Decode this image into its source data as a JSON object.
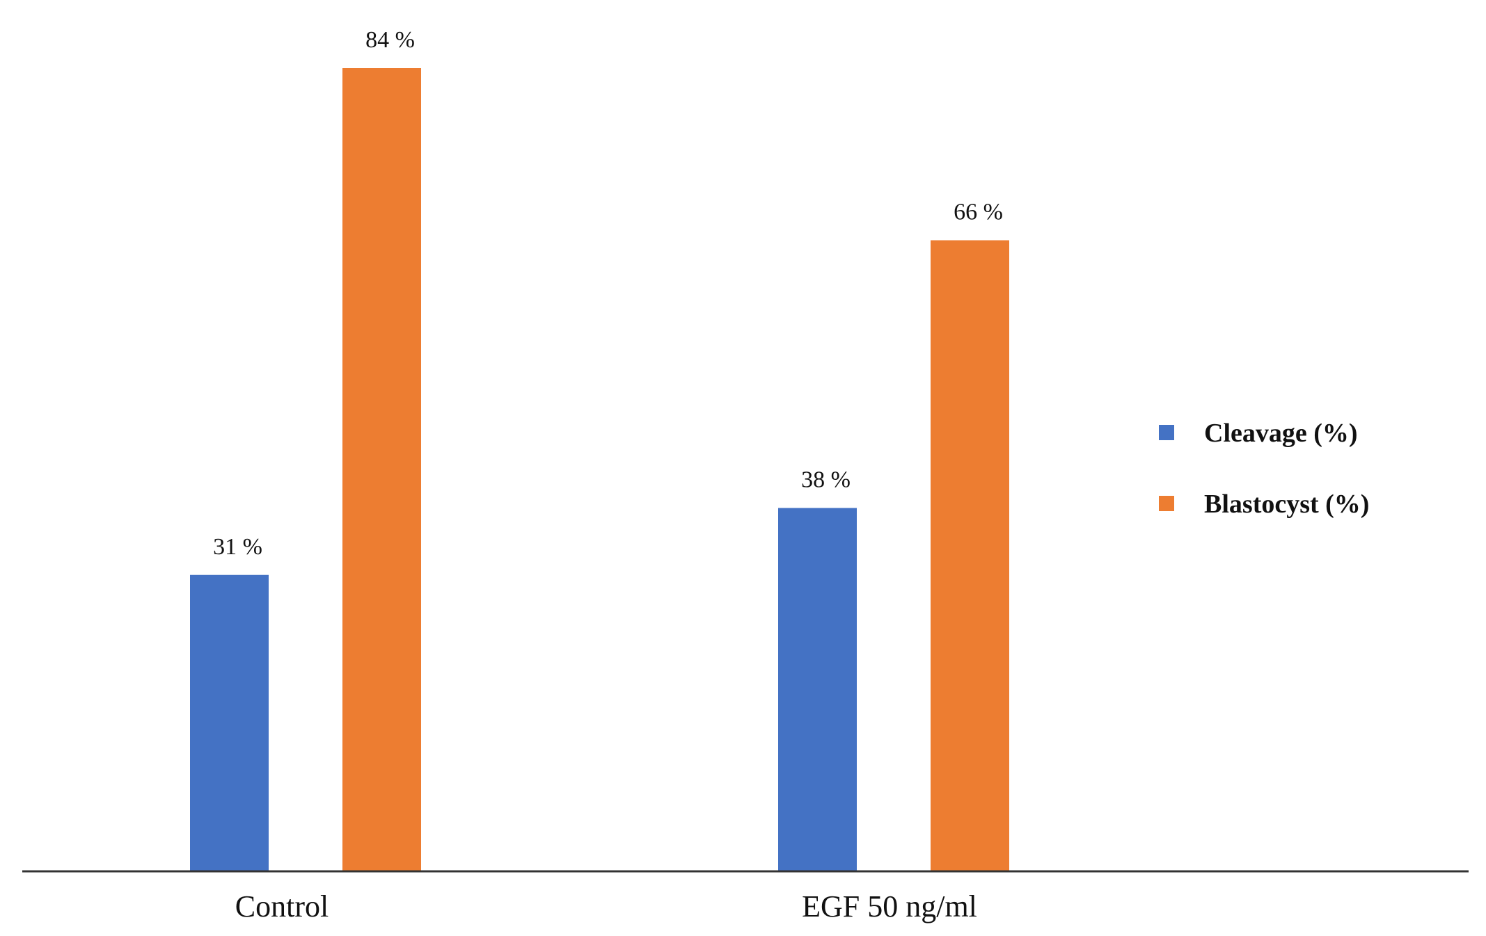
{
  "colors": {
    "background": "#ffffff",
    "axis": "#333333",
    "text": "#111111",
    "cleavage": "#4472C4",
    "blastocyst": "#ED7D31"
  },
  "chart_data": {
    "type": "bar",
    "title": "",
    "xlabel": "",
    "ylabel": "",
    "ylim": [
      0,
      100
    ],
    "grid": false,
    "legend_position": "right",
    "categories": [
      "Control",
      "EGF 50 ng/ml"
    ],
    "series": [
      {
        "name": "Cleavage (%)",
        "color": "#4472C4",
        "values": [
          31,
          38
        ],
        "labels": [
          "31 %",
          "38 %"
        ]
      },
      {
        "name": "Blastocyst (%)",
        "color": "#ED7D31",
        "values": [
          84,
          66
        ],
        "labels": [
          "84 %",
          "66 %"
        ]
      }
    ]
  }
}
